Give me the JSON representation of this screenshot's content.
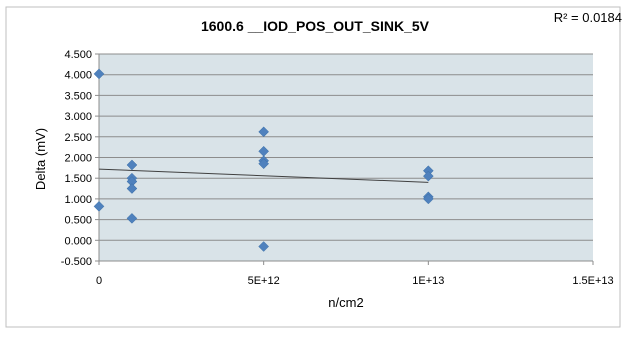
{
  "chart_data": {
    "type": "scatter",
    "title": "1600.6 __IOD_POS_OUT_SINK_5V",
    "xlabel": "n/cm2",
    "ylabel": "Delta (mV)",
    "annotation": "R² = 0.0184",
    "xlim": [
      0,
      15000000000000
    ],
    "ylim": [
      -0.5,
      4.5
    ],
    "x_ticks": [
      {
        "value": 0,
        "label": "0"
      },
      {
        "value": 5000000000000,
        "label": "5E+12"
      },
      {
        "value": 10000000000000,
        "label": "1E+13"
      },
      {
        "value": 15000000000000,
        "label": "1.5E+13"
      }
    ],
    "y_ticks": [
      {
        "value": -0.5,
        "label": "-0.500"
      },
      {
        "value": 0,
        "label": "0.000"
      },
      {
        "value": 0.5,
        "label": "0.500"
      },
      {
        "value": 1,
        "label": "1.000"
      },
      {
        "value": 1.5,
        "label": "1.500"
      },
      {
        "value": 2,
        "label": "2.000"
      },
      {
        "value": 2.5,
        "label": "2.500"
      },
      {
        "value": 3,
        "label": "3.000"
      },
      {
        "value": 3.5,
        "label": "3.500"
      },
      {
        "value": 4,
        "label": "4.000"
      },
      {
        "value": 4.5,
        "label": "4.500"
      }
    ],
    "grid": true,
    "series": [
      {
        "color": "#4f81bd",
        "marker": "diamond",
        "points": [
          {
            "x": 0,
            "y": 4.02
          },
          {
            "x": 0,
            "y": 0.82
          },
          {
            "x": 1000000000000,
            "y": 1.82
          },
          {
            "x": 1000000000000,
            "y": 1.5
          },
          {
            "x": 1000000000000,
            "y": 1.42
          },
          {
            "x": 1000000000000,
            "y": 1.25
          },
          {
            "x": 1000000000000,
            "y": 0.53
          },
          {
            "x": 5000000000000,
            "y": 2.62
          },
          {
            "x": 5000000000000,
            "y": 2.15
          },
          {
            "x": 5000000000000,
            "y": 1.92
          },
          {
            "x": 5000000000000,
            "y": 1.85
          },
          {
            "x": 5000000000000,
            "y": -0.15
          },
          {
            "x": 10000000000000,
            "y": 1.68
          },
          {
            "x": 10000000000000,
            "y": 1.55
          },
          {
            "x": 10000000000000,
            "y": 1.05
          },
          {
            "x": 10000000000000,
            "y": 1.0
          }
        ]
      }
    ],
    "trendline": {
      "type": "linear",
      "color": "#404040",
      "from": {
        "x": 0,
        "y": 1.72
      },
      "to": {
        "x": 10000000000000,
        "y": 1.4
      }
    },
    "colors": {
      "plot_background": "#d9e3e8",
      "frame": "#bfbfbf",
      "gridline": "#8c8c8c"
    }
  }
}
